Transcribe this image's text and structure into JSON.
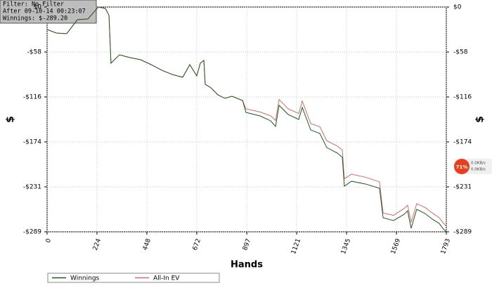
{
  "chart_data": {
    "type": "line",
    "annotation": [
      "Filter: No Filter",
      "After 09-10-14 00:23:07",
      "Winnings: $-289.20"
    ],
    "xlabel": "Hands",
    "ylabel": "$",
    "x": [
      0,
      41,
      88,
      136,
      183,
      230,
      262,
      278,
      287,
      325,
      372,
      420,
      467,
      515,
      562,
      609,
      641,
      672,
      688,
      704,
      710,
      736,
      767,
      799,
      830,
      878,
      893,
      956,
      1004,
      1026,
      1042,
      1083,
      1130,
      1146,
      1184,
      1225,
      1256,
      1304,
      1326,
      1335,
      1367,
      1430,
      1493,
      1509,
      1556,
      1604,
      1619,
      1635,
      1660,
      1698,
      1730,
      1761,
      1777,
      1793
    ],
    "series": [
      {
        "name": "Winnings",
        "color": "#1e5a1e",
        "values": [
          -28.9,
          -33.4,
          -34.3,
          -16.3,
          -15.4,
          0,
          -1.8,
          -10.8,
          -72.3,
          -61.5,
          -65.1,
          -67.8,
          -74.1,
          -81.3,
          -86.8,
          -90.4,
          -74.1,
          -88.6,
          -72.3,
          -68.7,
          -99.4,
          -103.9,
          -113.0,
          -117.5,
          -114.8,
          -120.2,
          -135.6,
          -140.1,
          -146.4,
          -153.6,
          -126.5,
          -138.3,
          -144.6,
          -129.2,
          -158.2,
          -162.7,
          -180.8,
          -188.0,
          -193.4,
          -230.5,
          -224.1,
          -227.7,
          -233.2,
          -271.1,
          -274.7,
          -266.6,
          -262.1,
          -284.7,
          -260.3,
          -265.7,
          -272.9,
          -278.4,
          -284.7,
          -289.2
        ]
      },
      {
        "name": "All-In EV",
        "color": "#d46a6a",
        "values": [
          -28.9,
          -33.4,
          -34.3,
          -16.3,
          -15.4,
          0,
          -1.8,
          -10.8,
          -72.3,
          -61.5,
          -65.1,
          -67.8,
          -74.1,
          -81.3,
          -86.8,
          -90.4,
          -74.1,
          -88.6,
          -72.3,
          -68.7,
          -99.4,
          -103.9,
          -113.0,
          -117.5,
          -114.8,
          -120.2,
          -131,
          -135,
          -140,
          -146,
          -119,
          -131,
          -137,
          -121,
          -150,
          -154,
          -172,
          -179,
          -184,
          -221,
          -215,
          -219,
          -225,
          -265,
          -268,
          -259,
          -255,
          -277,
          -253,
          -258,
          -265,
          -271,
          -277,
          -282
        ]
      }
    ],
    "xlim": [
      0,
      1793
    ],
    "xticks": [
      0,
      224,
      448,
      672,
      897,
      1121,
      1345,
      1569,
      1793
    ],
    "ylim": [
      -289.2,
      0
    ],
    "yticks": [
      {
        "value": 0,
        "label": "$0"
      },
      {
        "value": -57.84,
        "label": "-$58"
      },
      {
        "value": -115.68,
        "label": "-$116"
      },
      {
        "value": -173.52,
        "label": "-$174"
      },
      {
        "value": -231.36,
        "label": "-$231"
      },
      {
        "value": -289.2,
        "label": "-$289"
      }
    ],
    "grid": true,
    "legend": "bottom-left"
  },
  "overlay": {
    "cpu": "71%",
    "up": "0.0KB/s",
    "down": "0.0KB/s"
  }
}
